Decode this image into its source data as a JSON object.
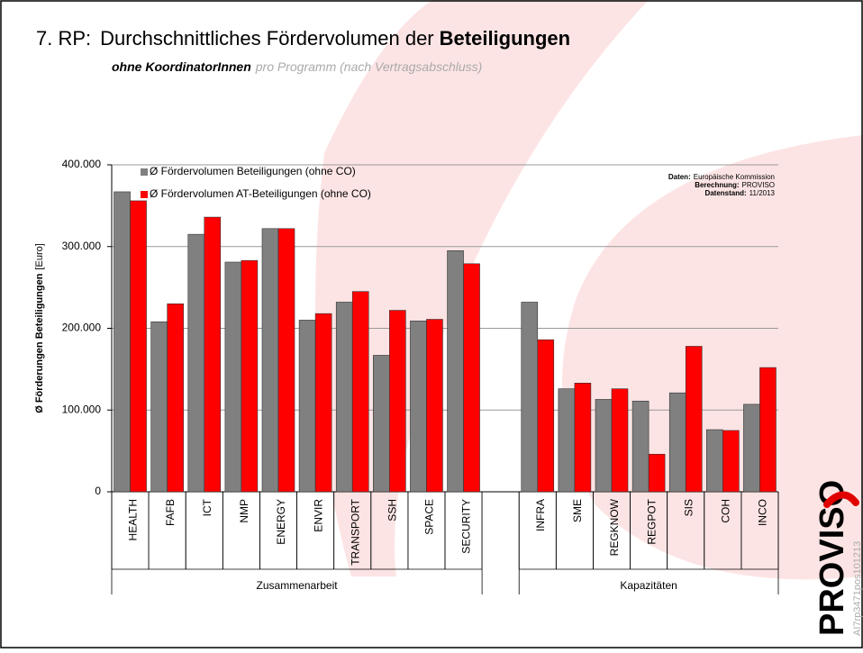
{
  "title": {
    "prefix": "7. RP:",
    "main": "Durchschnittliches Fördervolumen der",
    "bold": "Beteiligungen"
  },
  "subtitle": {
    "bold": "ohne KoordinatorInnen",
    "rest": "pro Programm (nach Vertragsabschluss)"
  },
  "chart_data": {
    "type": "bar",
    "ylabel": {
      "bold": "Ø Förderungen Beteiligungen",
      "unit": "[Euro]"
    },
    "categories": [
      "HEALTH",
      "FAFB",
      "ICT",
      "NMP",
      "ENERGY",
      "ENVIR",
      "TRANSPORT",
      "SSH",
      "SPACE",
      "SECURITY",
      null,
      "INFRA",
      "SME",
      "REGKNOW",
      "REGPOT",
      "SIS",
      "COH",
      "INCO"
    ],
    "groups": [
      "Zusammenarbeit",
      "Kapazitäten"
    ],
    "series": [
      {
        "name": "Ø Fördervolumen Beteiligungen (ohne CO)",
        "color": "#808080",
        "values": [
          367000,
          208000,
          315000,
          281000,
          322000,
          210000,
          232000,
          167000,
          209000,
          295000,
          null,
          232000,
          126000,
          113000,
          111000,
          121000,
          76000,
          107000
        ]
      },
      {
        "name": "Ø Fördervolumen AT-Beteiligungen (ohne CO)",
        "color": "#ff0000",
        "values": [
          356000,
          230000,
          336000,
          283000,
          322000,
          218000,
          245000,
          222000,
          211000,
          279000,
          null,
          186000,
          133000,
          126000,
          46000,
          178000,
          75000,
          152000
        ]
      }
    ],
    "ylim": [
      0,
      400000
    ],
    "yticks": [
      0,
      {
        "value": 100000,
        "label": "100.000"
      },
      {
        "value": 200000,
        "label": "200.000"
      },
      {
        "value": 300000,
        "label": "300.000"
      },
      {
        "value": 400000,
        "label": "400.000"
      }
    ],
    "grid": true,
    "legend": "top-left",
    "source": [
      {
        "key": "Daten:",
        "text": "Europäische Kommission"
      },
      {
        "key": "Berechnung:",
        "text": "PROVISO"
      },
      {
        "key": "Datenstand:",
        "text": "11/2013"
      }
    ]
  },
  "logo": "PROVISO",
  "code": "AI7rp3471pos101213"
}
